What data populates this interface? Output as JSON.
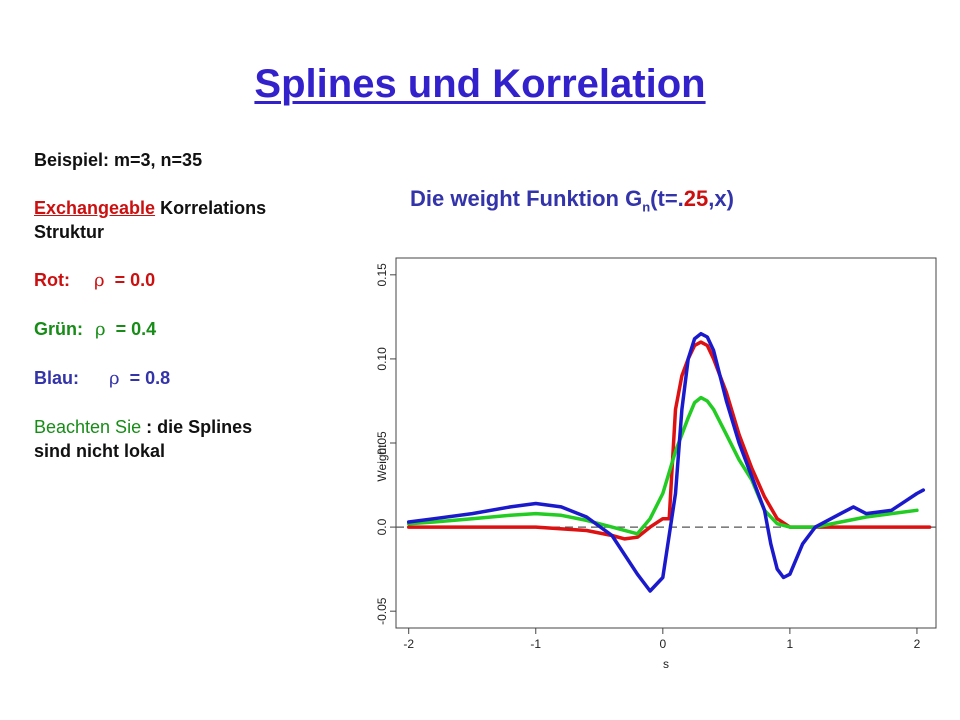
{
  "title": "Splines und Korrelation",
  "left": {
    "example": "Beispiel: m=3, n=35",
    "structure_underlined": "Exchangeable",
    "structure_rest": " Korrelations",
    "structure_line2": "Struktur",
    "red_label": "Rot:",
    "green_label": "Grün:",
    "blue_label": "Blau:",
    "rho_symbol": "ρ",
    "red_value": "= 0.0",
    "green_value": "= 0.4",
    "blue_value": "= 0.8",
    "note_colored": "Beachten Sie",
    "note_rest": " : die Splines",
    "note_line2": "sind nicht lokal"
  },
  "subtitle": {
    "part1": "Die weight Funktion G",
    "sub": "n",
    "part2_blue": "(t=.",
    "part2_red": "25",
    "part2_end": ",x)"
  },
  "chart_data": {
    "type": "line",
    "title": "",
    "xlabel": "s",
    "ylabel": "Weight",
    "xlim": [
      -2.1,
      2.15
    ],
    "ylim": [
      -0.06,
      0.16
    ],
    "xticks": [
      -2,
      -1,
      0,
      1,
      2
    ],
    "yticks": [
      -0.05,
      0.0,
      0.05,
      0.1,
      0.15
    ],
    "xtick_labels": [
      "-2",
      "-1",
      "0",
      "1",
      "2"
    ],
    "ytick_labels": [
      "-0.05",
      "0.0",
      "0.05",
      "0.10",
      "0.15"
    ],
    "colors": {
      "red": "#dd1111",
      "green": "#22cc22",
      "blue": "#1a1acc",
      "ref": "#555555"
    },
    "series": [
      {
        "color": "red",
        "x": [
          -2.0,
          -1.5,
          -1.0,
          -0.6,
          -0.4,
          -0.3,
          -0.2,
          -0.1,
          0.0,
          0.05,
          0.1,
          0.15,
          0.2,
          0.25,
          0.3,
          0.35,
          0.4,
          0.5,
          0.6,
          0.7,
          0.8,
          0.9,
          1.0,
          1.2,
          1.5,
          2.0,
          2.1
        ],
        "y": [
          0.0,
          0.0,
          0.0,
          -0.002,
          -0.005,
          -0.007,
          -0.006,
          0.0,
          0.005,
          0.005,
          0.07,
          0.09,
          0.1,
          0.108,
          0.11,
          0.108,
          0.1,
          0.08,
          0.055,
          0.035,
          0.018,
          0.005,
          0.0,
          0.0,
          0.0,
          0.0,
          0.0
        ]
      },
      {
        "color": "green",
        "x": [
          -2.0,
          -1.8,
          -1.5,
          -1.2,
          -1.0,
          -0.8,
          -0.6,
          -0.4,
          -0.2,
          -0.1,
          0.0,
          0.1,
          0.2,
          0.25,
          0.3,
          0.35,
          0.4,
          0.5,
          0.6,
          0.7,
          0.8,
          0.9,
          1.0,
          1.2,
          1.4,
          1.6,
          1.8,
          2.0
        ],
        "y": [
          0.002,
          0.003,
          0.005,
          0.007,
          0.008,
          0.007,
          0.004,
          0.0,
          -0.004,
          0.005,
          0.02,
          0.045,
          0.065,
          0.074,
          0.077,
          0.075,
          0.07,
          0.055,
          0.04,
          0.028,
          0.01,
          0.002,
          0.0,
          0.0,
          0.003,
          0.006,
          0.008,
          0.01
        ]
      },
      {
        "color": "blue",
        "x": [
          -2.0,
          -1.8,
          -1.5,
          -1.2,
          -1.0,
          -0.8,
          -0.6,
          -0.4,
          -0.2,
          -0.1,
          0.0,
          0.1,
          0.15,
          0.2,
          0.25,
          0.3,
          0.35,
          0.4,
          0.5,
          0.6,
          0.7,
          0.8,
          0.85,
          0.9,
          0.95,
          1.0,
          1.1,
          1.2,
          1.4,
          1.5,
          1.6,
          1.8,
          1.9,
          2.0,
          2.05
        ],
        "y": [
          0.003,
          0.005,
          0.008,
          0.012,
          0.014,
          0.012,
          0.006,
          -0.005,
          -0.028,
          -0.038,
          -0.03,
          0.02,
          0.07,
          0.1,
          0.112,
          0.115,
          0.113,
          0.105,
          0.075,
          0.05,
          0.03,
          0.01,
          -0.01,
          -0.025,
          -0.03,
          -0.028,
          -0.01,
          0.0,
          0.008,
          0.012,
          0.008,
          0.01,
          0.015,
          0.02,
          0.022
        ]
      }
    ],
    "reference_line": 0.0
  }
}
